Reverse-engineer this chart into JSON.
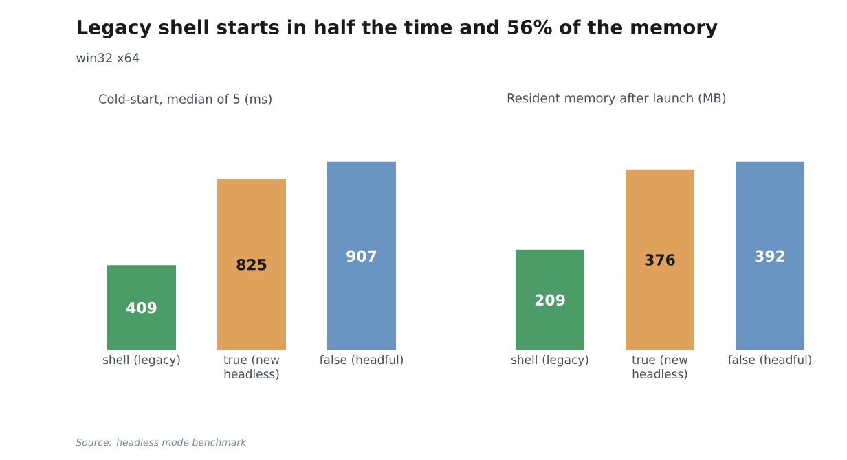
{
  "chart_data": [
    {
      "type": "bar",
      "title": "Cold-start, median of 5 (ms)",
      "categories": [
        "shell (legacy)",
        "true (new headless)",
        "false (headful)"
      ],
      "values": [
        409,
        825,
        907
      ],
      "colors": [
        "#4c9c67",
        "#dea25c",
        "#6a94c1"
      ],
      "data_labels": true,
      "annotations": [
        "Legacy shell starts in half the time and 56% of the memory",
        "win32 x64",
        "Source: headless mode benchmark"
      ]
    },
    {
      "type": "bar",
      "title": "Resident memory after launch (MB)",
      "categories": [
        "shell (legacy)",
        "true (new headless)",
        "false (headful)"
      ],
      "values": [
        209,
        376,
        392
      ],
      "colors": [
        "#4c9c67",
        "#dea25c",
        "#6a94c1"
      ],
      "data_labels": true
    }
  ]
}
